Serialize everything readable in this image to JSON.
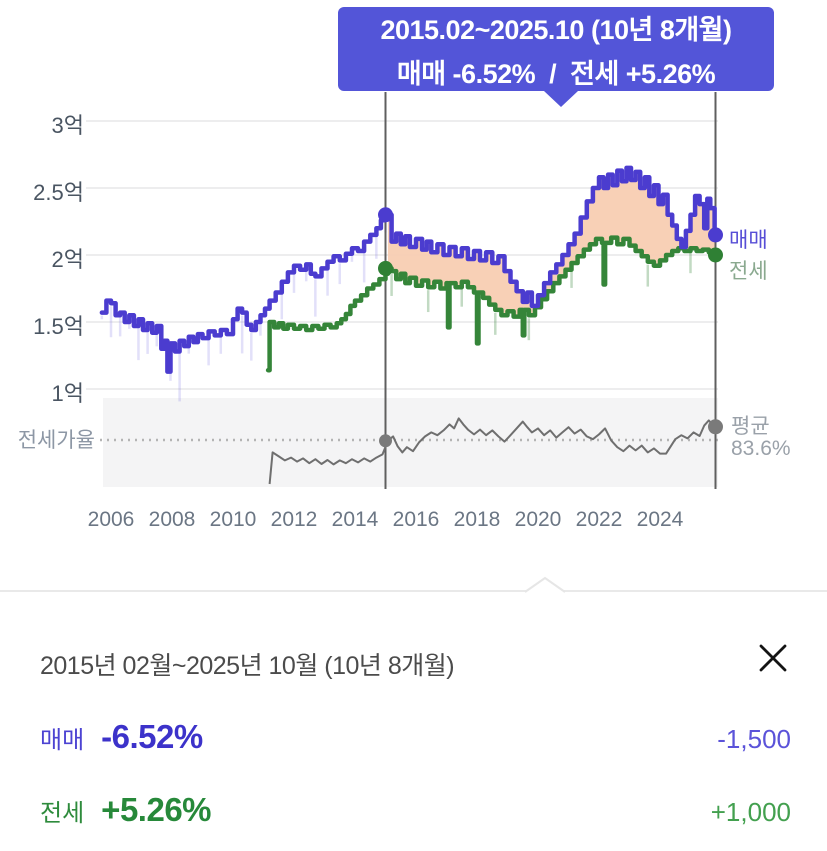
{
  "tooltip": {
    "period": "2015.02~2025.10 (10년 8개월)",
    "change": "매매 -6.52%  /  전세 +5.26%"
  },
  "chart_data": {
    "type": "line",
    "unit": "억원",
    "y_ticks": [
      {
        "value": 3.0,
        "label": "3억"
      },
      {
        "value": 2.5,
        "label": "2.5억"
      },
      {
        "value": 2.0,
        "label": "2억"
      },
      {
        "value": 1.5,
        "label": "1.5억"
      },
      {
        "value": 1.0,
        "label": "1억"
      }
    ],
    "x_ticks": [
      "2006",
      "2008",
      "2010",
      "2012",
      "2014",
      "2016",
      "2018",
      "2020",
      "2022",
      "2024"
    ],
    "x_range": [
      2005.6,
      2025.95
    ],
    "ratio_axis_label": "전세가율",
    "ratio_average_label": "평균",
    "ratio_average_value": "83.6%",
    "ratio_average": 83.6,
    "legend": [
      {
        "label": "매매",
        "color": "#4b3ccf"
      },
      {
        "label": "전세",
        "color": "#358539"
      }
    ],
    "colors": {
      "maemae": "#4b3ccf",
      "jeonse": "#358539",
      "ratio": "#6f6f6f",
      "fill": "#f8cdb2",
      "marker": "#5f5f5f",
      "grid": "#ededee",
      "ratio_panel": "#f4f4f5",
      "avg_dotted": "#b4b4b4"
    },
    "markers": {
      "start": {
        "year": 2015.08,
        "maemae": 2.3,
        "jeonse": 1.9,
        "ratio": 83.4
      },
      "end": {
        "year": 2025.79,
        "maemae": 2.15,
        "jeonse": 2.0,
        "ratio": 86.9
      }
    },
    "fill_between_from": 2015.05,
    "series": [
      {
        "name": "매매",
        "key": "maemae",
        "points": [
          [
            2005.7,
            1.57
          ],
          [
            2005.85,
            1.66
          ],
          [
            2006.0,
            1.64
          ],
          [
            2006.15,
            1.55
          ],
          [
            2006.3,
            1.57
          ],
          [
            2006.45,
            1.5
          ],
          [
            2006.6,
            1.55
          ],
          [
            2006.75,
            1.47
          ],
          [
            2006.9,
            1.52
          ],
          [
            2007.05,
            1.44
          ],
          [
            2007.2,
            1.49
          ],
          [
            2007.35,
            1.42
          ],
          [
            2007.5,
            1.47
          ],
          [
            2007.65,
            1.3
          ],
          [
            2007.75,
            1.36
          ],
          [
            2007.85,
            1.13
          ],
          [
            2007.95,
            1.34
          ],
          [
            2008.1,
            1.28
          ],
          [
            2008.25,
            1.36
          ],
          [
            2008.4,
            1.32
          ],
          [
            2008.55,
            1.39
          ],
          [
            2008.7,
            1.35
          ],
          [
            2008.85,
            1.41
          ],
          [
            2009.0,
            1.38
          ],
          [
            2009.2,
            1.43
          ],
          [
            2009.4,
            1.4
          ],
          [
            2009.6,
            1.44
          ],
          [
            2009.8,
            1.41
          ],
          [
            2010.0,
            1.52
          ],
          [
            2010.15,
            1.6
          ],
          [
            2010.3,
            1.57
          ],
          [
            2010.45,
            1.48
          ],
          [
            2010.6,
            1.44
          ],
          [
            2010.75,
            1.5
          ],
          [
            2010.9,
            1.55
          ],
          [
            2011.05,
            1.6
          ],
          [
            2011.2,
            1.66
          ],
          [
            2011.4,
            1.72
          ],
          [
            2011.6,
            1.8
          ],
          [
            2011.8,
            1.87
          ],
          [
            2012.0,
            1.92
          ],
          [
            2012.2,
            1.89
          ],
          [
            2012.4,
            1.93
          ],
          [
            2012.55,
            1.86
          ],
          [
            2012.7,
            1.84
          ],
          [
            2012.9,
            1.9
          ],
          [
            2013.1,
            1.95
          ],
          [
            2013.3,
            1.99
          ],
          [
            2013.5,
            1.96
          ],
          [
            2013.7,
            2.01
          ],
          [
            2013.9,
            2.05
          ],
          [
            2014.1,
            2.03
          ],
          [
            2014.3,
            2.1
          ],
          [
            2014.5,
            2.15
          ],
          [
            2014.7,
            2.2
          ],
          [
            2014.85,
            2.26
          ],
          [
            2015.0,
            2.32
          ],
          [
            2015.08,
            2.3
          ],
          [
            2015.2,
            2.1
          ],
          [
            2015.35,
            2.16
          ],
          [
            2015.5,
            2.08
          ],
          [
            2015.65,
            2.14
          ],
          [
            2015.8,
            2.06
          ],
          [
            2016.0,
            2.12
          ],
          [
            2016.2,
            2.04
          ],
          [
            2016.35,
            2.1
          ],
          [
            2016.5,
            2.02
          ],
          [
            2016.7,
            2.08
          ],
          [
            2016.9,
            2.0
          ],
          [
            2017.1,
            2.06
          ],
          [
            2017.3,
            1.99
          ],
          [
            2017.5,
            2.05
          ],
          [
            2017.7,
            1.97
          ],
          [
            2017.9,
            2.03
          ],
          [
            2018.1,
            1.96
          ],
          [
            2018.3,
            2.02
          ],
          [
            2018.5,
            1.94
          ],
          [
            2018.7,
            1.99
          ],
          [
            2018.9,
            1.88
          ],
          [
            2019.1,
            1.8
          ],
          [
            2019.3,
            1.73
          ],
          [
            2019.5,
            1.65
          ],
          [
            2019.65,
            1.72
          ],
          [
            2019.8,
            1.62
          ],
          [
            2020.0,
            1.7
          ],
          [
            2020.2,
            1.79
          ],
          [
            2020.4,
            1.87
          ],
          [
            2020.6,
            1.93
          ],
          [
            2020.8,
            2.0
          ],
          [
            2021.0,
            2.08
          ],
          [
            2021.2,
            2.16
          ],
          [
            2021.4,
            2.28
          ],
          [
            2021.6,
            2.4
          ],
          [
            2021.8,
            2.5
          ],
          [
            2022.0,
            2.58
          ],
          [
            2022.15,
            2.5
          ],
          [
            2022.3,
            2.6
          ],
          [
            2022.45,
            2.52
          ],
          [
            2022.6,
            2.63
          ],
          [
            2022.75,
            2.55
          ],
          [
            2022.9,
            2.65
          ],
          [
            2023.05,
            2.56
          ],
          [
            2023.2,
            2.62
          ],
          [
            2023.35,
            2.5
          ],
          [
            2023.5,
            2.58
          ],
          [
            2023.65,
            2.44
          ],
          [
            2023.8,
            2.52
          ],
          [
            2023.95,
            2.38
          ],
          [
            2024.1,
            2.45
          ],
          [
            2024.25,
            2.3
          ],
          [
            2024.4,
            2.22
          ],
          [
            2024.55,
            2.12
          ],
          [
            2024.7,
            2.06
          ],
          [
            2024.85,
            2.18
          ],
          [
            2025.0,
            2.3
          ],
          [
            2025.15,
            2.44
          ],
          [
            2025.3,
            2.38
          ],
          [
            2025.45,
            2.2
          ],
          [
            2025.55,
            2.42
          ],
          [
            2025.65,
            2.35
          ],
          [
            2025.79,
            2.15
          ]
        ]
      },
      {
        "name": "전세",
        "key": "jeonse",
        "points": [
          [
            2011.15,
            1.14
          ],
          [
            2011.2,
            1.5
          ],
          [
            2011.35,
            1.46
          ],
          [
            2011.5,
            1.49
          ],
          [
            2011.65,
            1.45
          ],
          [
            2011.8,
            1.48
          ],
          [
            2012.0,
            1.45
          ],
          [
            2012.2,
            1.47
          ],
          [
            2012.4,
            1.44
          ],
          [
            2012.6,
            1.47
          ],
          [
            2012.8,
            1.45
          ],
          [
            2013.0,
            1.48
          ],
          [
            2013.2,
            1.46
          ],
          [
            2013.4,
            1.49
          ],
          [
            2013.55,
            1.52
          ],
          [
            2013.7,
            1.56
          ],
          [
            2013.85,
            1.62
          ],
          [
            2014.0,
            1.66
          ],
          [
            2014.2,
            1.7
          ],
          [
            2014.4,
            1.75
          ],
          [
            2014.6,
            1.78
          ],
          [
            2014.8,
            1.82
          ],
          [
            2015.0,
            1.86
          ],
          [
            2015.08,
            1.9
          ],
          [
            2015.2,
            1.88
          ],
          [
            2015.35,
            1.82
          ],
          [
            2015.5,
            1.86
          ],
          [
            2015.65,
            1.79
          ],
          [
            2015.8,
            1.83
          ],
          [
            2016.0,
            1.77
          ],
          [
            2016.2,
            1.81
          ],
          [
            2016.4,
            1.76
          ],
          [
            2016.6,
            1.8
          ],
          [
            2016.8,
            1.75
          ],
          [
            2017.0,
            1.79
          ],
          [
            2017.05,
            1.46
          ],
          [
            2017.1,
            1.79
          ],
          [
            2017.3,
            1.76
          ],
          [
            2017.5,
            1.8
          ],
          [
            2017.7,
            1.76
          ],
          [
            2017.9,
            1.72
          ],
          [
            2018.0,
            1.34
          ],
          [
            2018.05,
            1.72
          ],
          [
            2018.2,
            1.68
          ],
          [
            2018.4,
            1.63
          ],
          [
            2018.6,
            1.59
          ],
          [
            2018.8,
            1.55
          ],
          [
            2019.0,
            1.58
          ],
          [
            2019.2,
            1.54
          ],
          [
            2019.4,
            1.59
          ],
          [
            2019.5,
            1.4
          ],
          [
            2019.55,
            1.59
          ],
          [
            2019.7,
            1.55
          ],
          [
            2019.9,
            1.61
          ],
          [
            2020.1,
            1.67
          ],
          [
            2020.3,
            1.73
          ],
          [
            2020.5,
            1.79
          ],
          [
            2020.7,
            1.84
          ],
          [
            2020.9,
            1.89
          ],
          [
            2021.1,
            1.94
          ],
          [
            2021.3,
            1.99
          ],
          [
            2021.5,
            2.04
          ],
          [
            2021.7,
            2.08
          ],
          [
            2021.9,
            2.12
          ],
          [
            2022.1,
            2.09
          ],
          [
            2022.15,
            1.78
          ],
          [
            2022.2,
            2.09
          ],
          [
            2022.4,
            2.13
          ],
          [
            2022.6,
            2.08
          ],
          [
            2022.8,
            2.12
          ],
          [
            2023.0,
            2.07
          ],
          [
            2023.2,
            2.03
          ],
          [
            2023.4,
            1.99
          ],
          [
            2023.6,
            1.95
          ],
          [
            2023.8,
            1.92
          ],
          [
            2024.0,
            1.96
          ],
          [
            2024.2,
            2.0
          ],
          [
            2024.4,
            2.03
          ],
          [
            2024.6,
            2.05
          ],
          [
            2024.8,
            2.03
          ],
          [
            2025.0,
            2.05
          ],
          [
            2025.2,
            2.03
          ],
          [
            2025.4,
            2.04
          ],
          [
            2025.6,
            2.02
          ],
          [
            2025.79,
            2.0
          ]
        ]
      },
      {
        "name": "전세가율",
        "key": "ratio",
        "points": [
          [
            2011.2,
            72
          ],
          [
            2011.3,
            80.5
          ],
          [
            2011.5,
            79.5
          ],
          [
            2011.7,
            78.5
          ],
          [
            2011.9,
            79.2
          ],
          [
            2012.1,
            78.2
          ],
          [
            2012.3,
            79
          ],
          [
            2012.5,
            77.8
          ],
          [
            2012.7,
            78.8
          ],
          [
            2012.9,
            77.6
          ],
          [
            2013.1,
            78.6
          ],
          [
            2013.3,
            77.5
          ],
          [
            2013.5,
            78.5
          ],
          [
            2013.7,
            77.8
          ],
          [
            2013.9,
            78.8
          ],
          [
            2014.1,
            78
          ],
          [
            2014.3,
            79
          ],
          [
            2014.5,
            78.2
          ],
          [
            2014.7,
            79.2
          ],
          [
            2014.9,
            80
          ],
          [
            2015.08,
            83.4
          ],
          [
            2015.25,
            84.5
          ],
          [
            2015.4,
            82
          ],
          [
            2015.55,
            80.5
          ],
          [
            2015.7,
            81.8
          ],
          [
            2015.9,
            80.8
          ],
          [
            2016.1,
            83
          ],
          [
            2016.3,
            84.5
          ],
          [
            2016.5,
            85.5
          ],
          [
            2016.7,
            84.8
          ],
          [
            2016.9,
            86
          ],
          [
            2017.1,
            87.5
          ],
          [
            2017.25,
            86.5
          ],
          [
            2017.4,
            89
          ],
          [
            2017.55,
            87.5
          ],
          [
            2017.7,
            86.2
          ],
          [
            2017.9,
            85
          ],
          [
            2018.1,
            86.2
          ],
          [
            2018.3,
            84.8
          ],
          [
            2018.5,
            86
          ],
          [
            2018.7,
            84.5
          ],
          [
            2018.9,
            83.2
          ],
          [
            2019.1,
            84.8
          ],
          [
            2019.3,
            86.5
          ],
          [
            2019.5,
            88.2
          ],
          [
            2019.65,
            86.8
          ],
          [
            2019.8,
            85.5
          ],
          [
            2020.0,
            86.5
          ],
          [
            2020.2,
            84.8
          ],
          [
            2020.4,
            86
          ],
          [
            2020.6,
            84.2
          ],
          [
            2020.8,
            85.5
          ],
          [
            2021.0,
            86.8
          ],
          [
            2021.2,
            85.2
          ],
          [
            2021.4,
            86.2
          ],
          [
            2021.6,
            84.5
          ],
          [
            2021.8,
            83.8
          ],
          [
            2022.0,
            85
          ],
          [
            2022.2,
            86.5
          ],
          [
            2022.4,
            83.5
          ],
          [
            2022.6,
            81.8
          ],
          [
            2022.8,
            80.8
          ],
          [
            2023.0,
            82.2
          ],
          [
            2023.2,
            81
          ],
          [
            2023.4,
            82.2
          ],
          [
            2023.6,
            80.5
          ],
          [
            2023.8,
            81.5
          ],
          [
            2024.0,
            80.2
          ],
          [
            2024.2,
            80.2
          ],
          [
            2024.5,
            83.8
          ],
          [
            2024.7,
            84.8
          ],
          [
            2024.9,
            84
          ],
          [
            2025.1,
            85.5
          ],
          [
            2025.3,
            84.6
          ],
          [
            2025.45,
            87.2
          ],
          [
            2025.6,
            88.5
          ],
          [
            2025.79,
            86.9
          ]
        ]
      }
    ]
  },
  "summary_panel": {
    "title": "2015년 02월~2025년 10월 (10년 8개월)",
    "rows": [
      {
        "label": "매매",
        "percent": "-6.52%",
        "amount": "-1,500"
      },
      {
        "label": "전세",
        "percent": "+5.26%",
        "amount": "+1,000"
      }
    ]
  }
}
